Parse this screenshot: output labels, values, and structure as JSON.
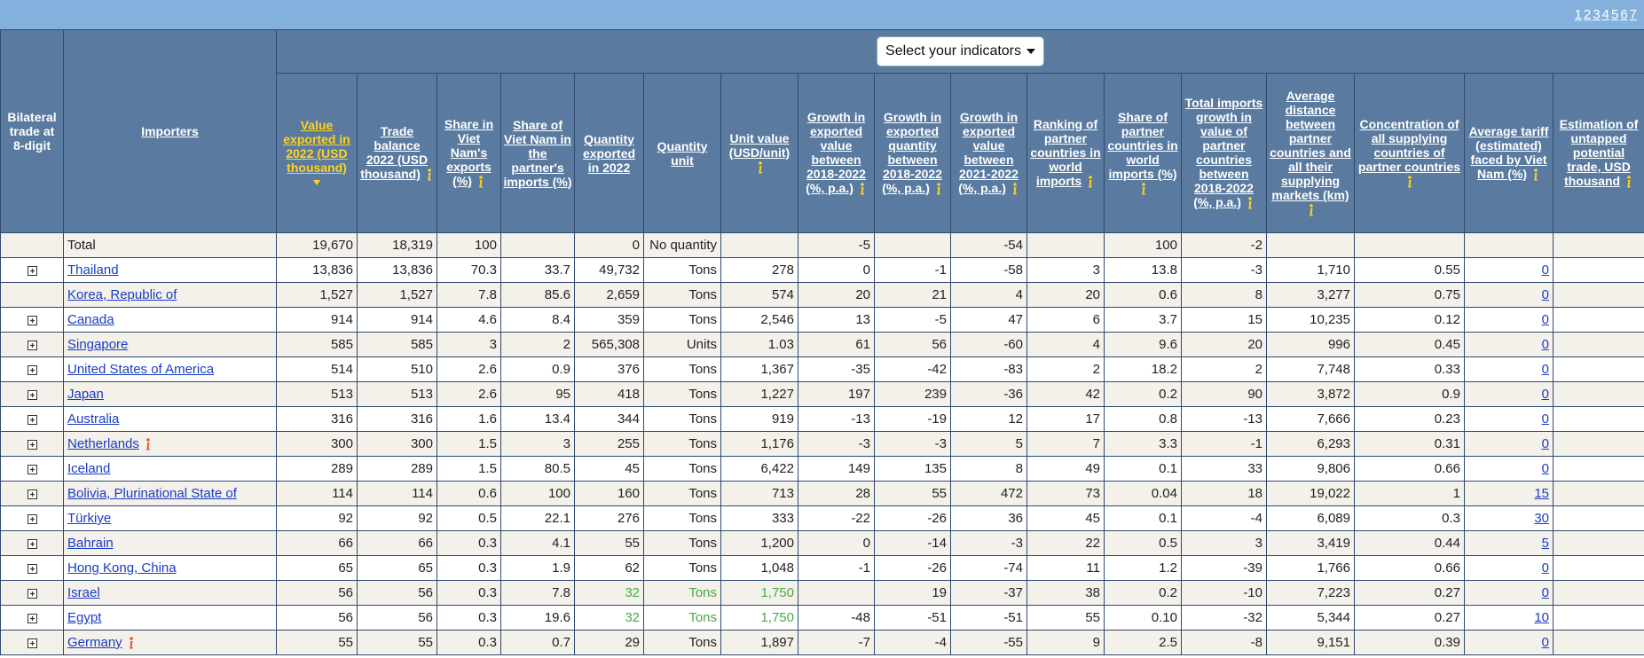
{
  "header": {
    "pages": [
      "1",
      "2",
      "3",
      "4",
      "5",
      "6",
      "7"
    ],
    "select_label": "Select your indicators"
  },
  "table": {
    "columns": [
      {
        "label": "Bilateral trade at 8-digit",
        "link": false,
        "info": false
      },
      {
        "label": "Importers",
        "link": true,
        "info": false
      },
      {
        "label": "Value exported in 2022 (USD thousand)",
        "link": true,
        "info": false,
        "sorted": true
      },
      {
        "label": "Trade balance 2022 (USD thousand)",
        "link": true,
        "info": true
      },
      {
        "label": "Share in Viet Nam's exports (%)",
        "link": true,
        "info": true
      },
      {
        "label": "Share of Viet Nam in the partner's imports (%)",
        "link": true,
        "info": false
      },
      {
        "label": "Quantity exported in 2022",
        "link": true,
        "info": false
      },
      {
        "label": "Quantity unit",
        "link": true,
        "info": false
      },
      {
        "label": "Unit value (USD/unit)",
        "link": true,
        "info": true
      },
      {
        "label": "Growth in exported value between 2018-2022 (%, p.a.)",
        "link": true,
        "info": true
      },
      {
        "label": "Growth in exported quantity between 2018-2022 (%, p.a.)",
        "link": true,
        "info": true
      },
      {
        "label": "Growth in exported value between 2021-2022 (%, p.a.)",
        "link": true,
        "info": true
      },
      {
        "label": "Ranking of partner countries in world imports",
        "link": true,
        "info": true
      },
      {
        "label": "Share of partner countries in world imports (%)",
        "link": true,
        "info": true
      },
      {
        "label": "Total imports growth in value of partner countries between 2018-2022 (%, p.a.)",
        "link": true,
        "info": true
      },
      {
        "label": "Average distance between partner countries and all their supplying markets (km)",
        "link": true,
        "info": true
      },
      {
        "label": "Concentration of all supplying countries of partner countries",
        "link": true,
        "info": true
      },
      {
        "label": "Average tariff (estimated) faced by Viet Nam (%)",
        "link": true,
        "info": true
      },
      {
        "label": "Estimation of untapped potential trade, USD thousand",
        "link": true,
        "info": true
      }
    ],
    "rows": [
      {
        "expand": false,
        "link": false,
        "cells": [
          "Total",
          "19,670",
          "18,319",
          "100",
          "",
          "0",
          "No quantity",
          "",
          "-5",
          "",
          "-54",
          "",
          "100",
          "-2",
          "",
          "",
          "",
          ""
        ]
      },
      {
        "expand": true,
        "link": true,
        "cells": [
          "Thailand",
          "13,836",
          "13,836",
          "70.3",
          "33.7",
          "49,732",
          "Tons",
          "278",
          "0",
          "-1",
          "-58",
          "3",
          "13.8",
          "-3",
          "1,710",
          "0.55",
          "0",
          ""
        ]
      },
      {
        "expand": false,
        "link": true,
        "cells": [
          "Korea, Republic of",
          "1,527",
          "1,527",
          "7.8",
          "85.6",
          "2,659",
          "Tons",
          "574",
          "20",
          "21",
          "4",
          "20",
          "0.6",
          "8",
          "3,277",
          "0.75",
          "0",
          ""
        ]
      },
      {
        "expand": true,
        "link": true,
        "cells": [
          "Canada",
          "914",
          "914",
          "4.6",
          "8.4",
          "359",
          "Tons",
          "2,546",
          "13",
          "-5",
          "47",
          "6",
          "3.7",
          "15",
          "10,235",
          "0.12",
          "0",
          ""
        ]
      },
      {
        "expand": true,
        "link": true,
        "cells": [
          "Singapore",
          "585",
          "585",
          "3",
          "2",
          "565,308",
          "Units",
          "1.03",
          "61",
          "56",
          "-60",
          "4",
          "9.6",
          "20",
          "996",
          "0.45",
          "0",
          ""
        ]
      },
      {
        "expand": true,
        "link": true,
        "cells": [
          "United States of America",
          "514",
          "510",
          "2.6",
          "0.9",
          "376",
          "Tons",
          "1,367",
          "-35",
          "-42",
          "-83",
          "2",
          "18.2",
          "2",
          "7,748",
          "0.33",
          "0",
          ""
        ]
      },
      {
        "expand": true,
        "link": true,
        "cells": [
          "Japan",
          "513",
          "513",
          "2.6",
          "95",
          "418",
          "Tons",
          "1,227",
          "197",
          "239",
          "-36",
          "42",
          "0.2",
          "90",
          "3,872",
          "0.9",
          "0",
          ""
        ]
      },
      {
        "expand": true,
        "link": true,
        "cells": [
          "Australia",
          "316",
          "316",
          "1.6",
          "13.4",
          "344",
          "Tons",
          "919",
          "-13",
          "-19",
          "12",
          "17",
          "0.8",
          "-13",
          "7,666",
          "0.23",
          "0",
          ""
        ]
      },
      {
        "expand": true,
        "link": true,
        "info": true,
        "cells": [
          "Netherlands",
          "300",
          "300",
          "1.5",
          "3",
          "255",
          "Tons",
          "1,176",
          "-3",
          "-3",
          "5",
          "7",
          "3.3",
          "-1",
          "6,293",
          "0.31",
          "0",
          ""
        ]
      },
      {
        "expand": true,
        "link": true,
        "cells": [
          "Iceland",
          "289",
          "289",
          "1.5",
          "80.5",
          "45",
          "Tons",
          "6,422",
          "149",
          "135",
          "8",
          "49",
          "0.1",
          "33",
          "9,806",
          "0.66",
          "0",
          ""
        ]
      },
      {
        "expand": true,
        "link": true,
        "cells": [
          "Bolivia, Plurinational State of",
          "114",
          "114",
          "0.6",
          "100",
          "160",
          "Tons",
          "713",
          "28",
          "55",
          "472",
          "73",
          "0.04",
          "18",
          "19,022",
          "1",
          "15",
          ""
        ]
      },
      {
        "expand": true,
        "link": true,
        "cells": [
          "Türkiye",
          "92",
          "92",
          "0.5",
          "22.1",
          "276",
          "Tons",
          "333",
          "-22",
          "-26",
          "36",
          "45",
          "0.1",
          "-4",
          "6,089",
          "0.3",
          "30",
          ""
        ]
      },
      {
        "expand": true,
        "link": true,
        "cells": [
          "Bahrain",
          "66",
          "66",
          "0.3",
          "4.1",
          "55",
          "Tons",
          "1,200",
          "0",
          "-14",
          "-3",
          "22",
          "0.5",
          "3",
          "3,419",
          "0.44",
          "5",
          ""
        ]
      },
      {
        "expand": true,
        "link": true,
        "cells": [
          "Hong Kong, China",
          "65",
          "65",
          "0.3",
          "1.9",
          "62",
          "Tons",
          "1,048",
          "-1",
          "-26",
          "-74",
          "11",
          "1.2",
          "-39",
          "1,766",
          "0.66",
          "0",
          ""
        ]
      },
      {
        "expand": true,
        "link": true,
        "highlight_color": "#4aa84a",
        "cells": [
          "Israel",
          "56",
          "56",
          "0.3",
          "7.8",
          "32",
          "Tons",
          "1,750",
          "",
          "19",
          "-37",
          "38",
          "0.2",
          "-10",
          "7,223",
          "0.27",
          "0",
          ""
        ]
      },
      {
        "expand": true,
        "link": true,
        "highlight_color": "#4aa84a",
        "cells": [
          "Egypt",
          "56",
          "56",
          "0.3",
          "19.6",
          "32",
          "Tons",
          "1,750",
          "-48",
          "-51",
          "-51",
          "55",
          "0.10",
          "-32",
          "5,344",
          "0.27",
          "10",
          ""
        ]
      },
      {
        "expand": true,
        "link": true,
        "info": true,
        "cells": [
          "Germany",
          "55",
          "55",
          "0.3",
          "0.7",
          "29",
          "Tons",
          "1,897",
          "-7",
          "-4",
          "-55",
          "9",
          "2.5",
          "-8",
          "9,151",
          "0.39",
          "0",
          ""
        ]
      }
    ]
  }
}
